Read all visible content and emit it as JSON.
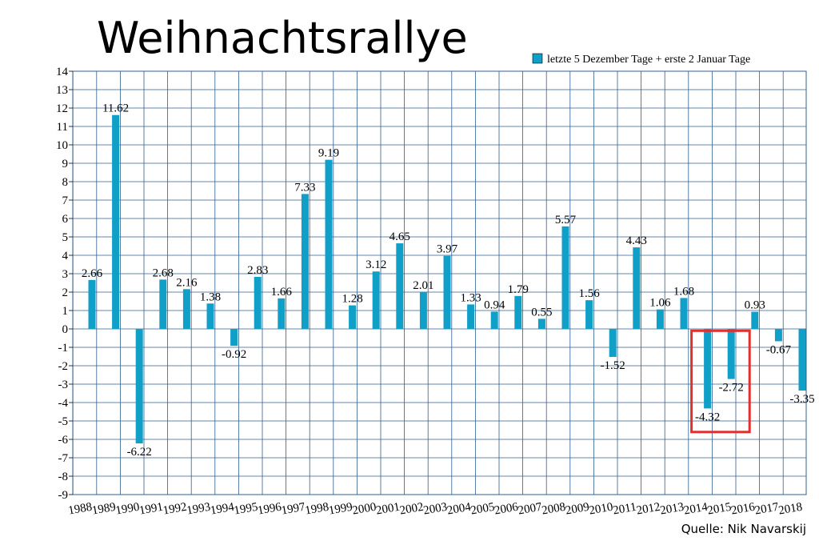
{
  "chart_data": {
    "type": "bar",
    "title": "Weihnachtsrallye",
    "source": "Quelle: Nik Navarskij",
    "legend": "top-right",
    "grid": true,
    "ylim": [
      -9,
      14
    ],
    "yticks": [
      -9,
      -8,
      -7,
      -6,
      -5,
      -4,
      -3,
      -2,
      -1,
      0,
      1,
      2,
      3,
      4,
      5,
      6,
      7,
      8,
      9,
      10,
      11,
      12,
      13,
      14
    ],
    "xtick_labels": [
      "1988",
      "1989",
      "1990",
      "1991",
      "1992",
      "1993",
      "1994",
      "1995",
      "1996",
      "1997",
      "1998",
      "1999",
      "2000",
      "2001",
      "2002",
      "2003",
      "2004",
      "2005",
      "2006",
      "2007",
      "2008",
      "2009",
      "2010",
      "2011",
      "2012",
      "2013",
      "2014",
      "2015",
      "2016",
      "2017",
      "2018"
    ],
    "series": [
      {
        "name": "letzte 5 Dezember Tage + erste 2 Januar Tage",
        "color": "#0f9fc7",
        "values": [
          2.66,
          11.62,
          -6.22,
          2.68,
          2.16,
          1.38,
          -0.92,
          2.83,
          1.66,
          7.33,
          9.19,
          1.28,
          3.12,
          4.65,
          2.01,
          3.97,
          1.33,
          0.94,
          1.79,
          0.55,
          5.57,
          1.56,
          -1.52,
          4.43,
          1.06,
          1.68,
          -4.32,
          -2.72,
          0.93,
          -0.67,
          -3.35
        ],
        "labels": [
          "2.66",
          "11.62",
          "-6.22",
          "2.68",
          "2.16",
          "1.38",
          "-0.92",
          "2.83",
          "1.66",
          "7.33",
          "9.19",
          "1.28",
          "3.12",
          "4.65",
          "2.01",
          "3.97",
          "1.33",
          "0.94",
          "1.79",
          "0.55",
          "5.57",
          "1.56",
          "-1.52",
          "4.43",
          "1.06",
          "1.68",
          "-4.32",
          "-2.72",
          "0.93",
          "-0.67",
          "-3.35"
        ]
      }
    ],
    "highlight": {
      "color": "#e03030",
      "bars": [
        26,
        27
      ]
    }
  }
}
